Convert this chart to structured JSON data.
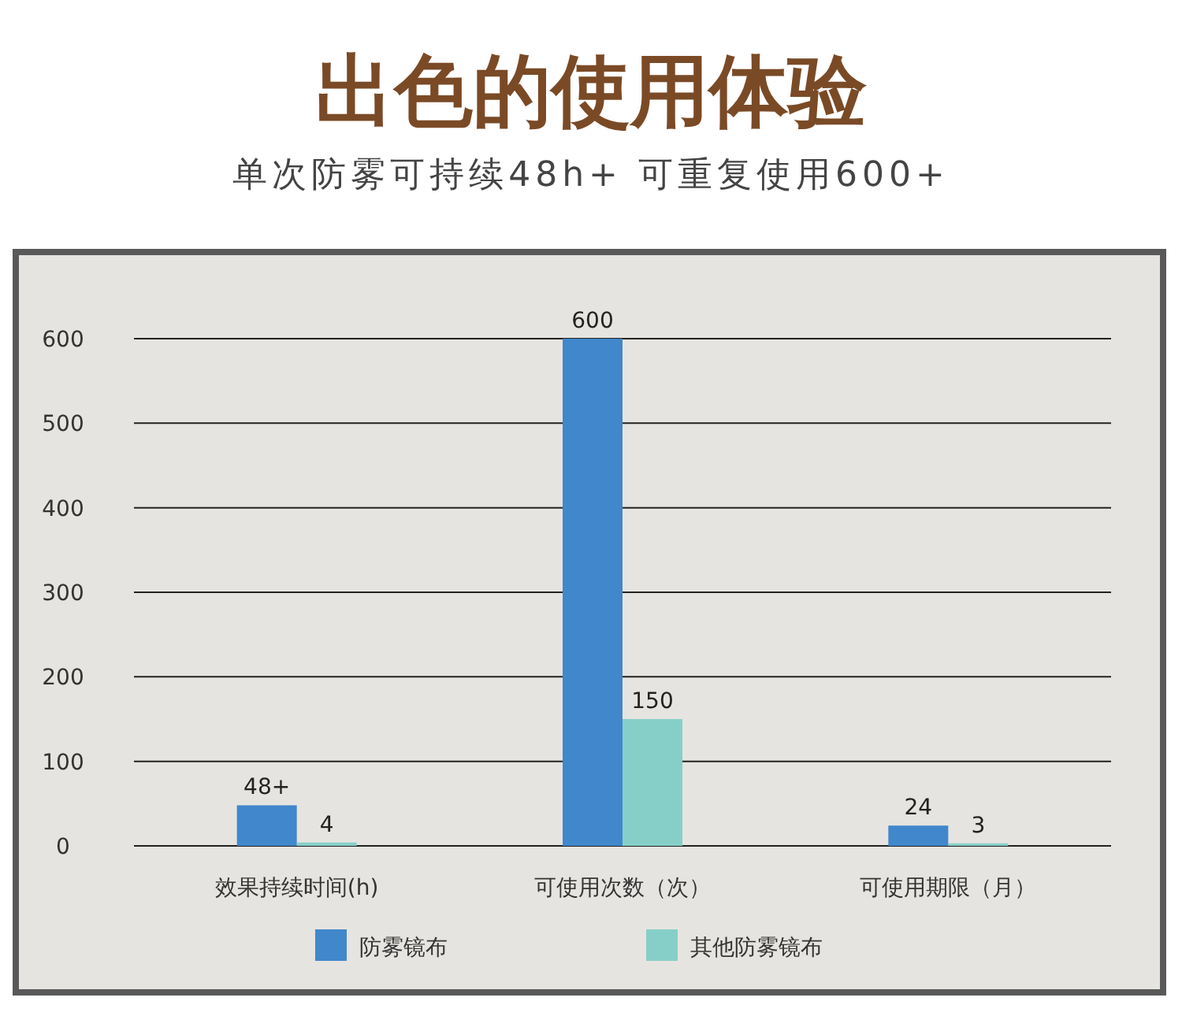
{
  "chart_data": {
    "type": "bar",
    "title": "出色的使用体验",
    "subtitle": "单次防雾可持续48h+  可重复使用600+",
    "categories": [
      "效果持续时间(h)",
      "可使用次数（次）",
      "可使用期限（月）"
    ],
    "series": [
      {
        "name": "防雾镜布",
        "color": "#4187cc",
        "values": [
          48,
          600,
          24
        ],
        "value_labels": [
          "48+",
          "600",
          "24"
        ]
      },
      {
        "name": "其他防雾镜布",
        "color": "#86cfc8",
        "values": [
          4,
          150,
          3
        ],
        "value_labels": [
          "4",
          "150",
          "3"
        ]
      }
    ],
    "ylim": [
      0,
      600
    ],
    "yticks": [
      0,
      100,
      200,
      300,
      400,
      500,
      600
    ],
    "grid": "y",
    "legend": "bottom"
  }
}
